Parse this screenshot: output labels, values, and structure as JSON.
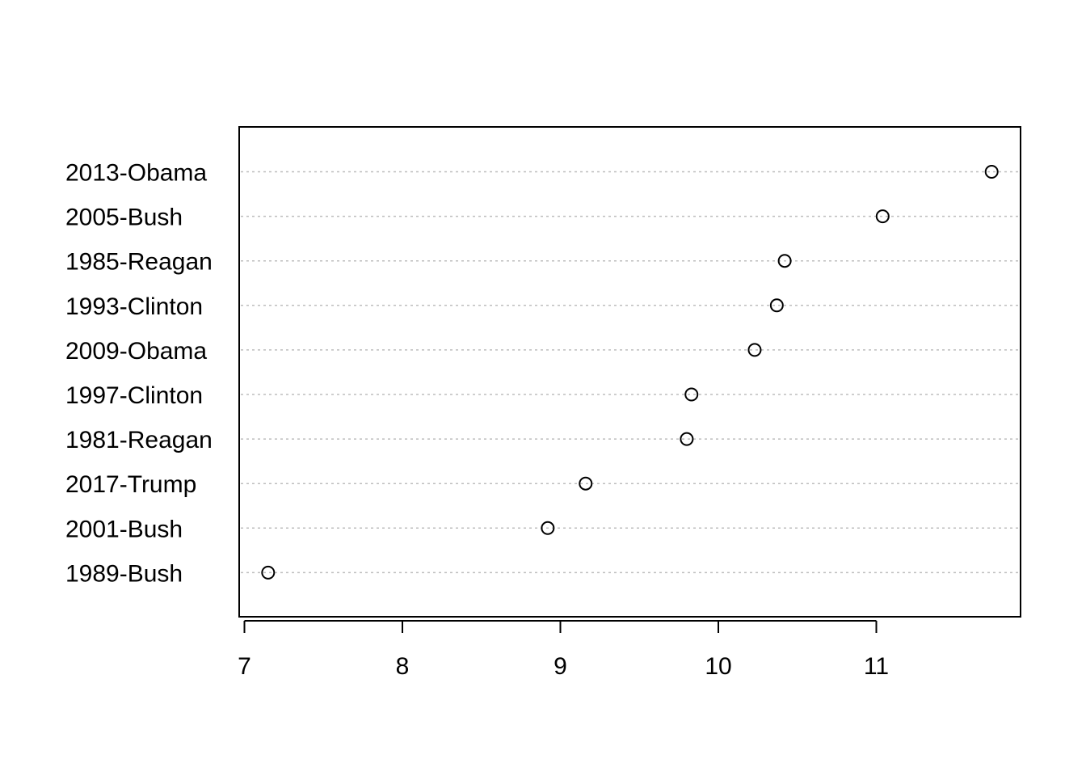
{
  "chart_data": {
    "type": "scatter",
    "subtype": "dotchart",
    "title": "",
    "xlabel": "",
    "ylabel": "",
    "xlim": [
      7,
      11.9
    ],
    "x_ticks": [
      7,
      8,
      9,
      10,
      11
    ],
    "x_tick_labels": [
      "7",
      "8",
      "9",
      "10",
      "11"
    ],
    "grid": "dotted horizontal guide lines",
    "colors": {
      "guide_line": "#bebebe",
      "point_stroke": "#000000",
      "frame": "#000000"
    },
    "categories": [
      "2013-Obama",
      "2005-Bush",
      "1985-Reagan",
      "1993-Clinton",
      "2009-Obama",
      "1997-Clinton",
      "1981-Reagan",
      "2017-Trump",
      "2001-Bush",
      "1989-Bush"
    ],
    "values": [
      11.73,
      11.04,
      10.42,
      10.37,
      10.23,
      9.83,
      9.8,
      9.16,
      8.92,
      7.15
    ]
  }
}
